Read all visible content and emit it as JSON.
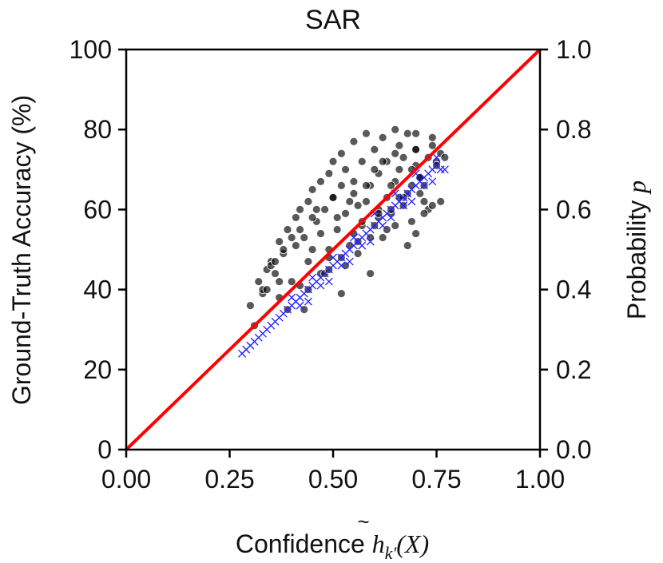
{
  "chart_data": {
    "type": "scatter",
    "title": "SAR",
    "xlabel": {
      "prefix": "Confidence ",
      "symbol": "h",
      "sub": "k′",
      "suffix": "(X)"
    },
    "ylabel": "Ground-Truth Accuracy (%)",
    "y2label": {
      "prefix": "Probability ",
      "symbol": "p"
    },
    "xlim": [
      0,
      1
    ],
    "ylim": [
      0,
      100
    ],
    "y2lim": [
      0,
      1
    ],
    "xticks": [
      "0.00",
      "0.25",
      "0.50",
      "0.75",
      "1.00"
    ],
    "yticks": [
      "0",
      "20",
      "40",
      "60",
      "80",
      "100"
    ],
    "y2ticks": [
      "0.0",
      "0.2",
      "0.4",
      "0.6",
      "0.8",
      "1.0"
    ],
    "grid": false,
    "colors": {
      "accuracy": "#000000",
      "probability": "#1f1fff",
      "reference": "#ff0000"
    },
    "reference_line": {
      "x": [
        0,
        1
      ],
      "y": [
        0,
        100
      ]
    },
    "series": [
      {
        "marker": "circle",
        "axis": "left",
        "x": [
          0.3,
          0.31,
          0.32,
          0.33,
          0.34,
          0.35,
          0.36,
          0.37,
          0.37,
          0.38,
          0.39,
          0.39,
          0.4,
          0.41,
          0.42,
          0.42,
          0.43,
          0.44,
          0.44,
          0.45,
          0.45,
          0.46,
          0.47,
          0.47,
          0.48,
          0.49,
          0.49,
          0.5,
          0.5,
          0.51,
          0.52,
          0.52,
          0.53,
          0.53,
          0.54,
          0.55,
          0.55,
          0.56,
          0.57,
          0.57,
          0.58,
          0.59,
          0.59,
          0.6,
          0.61,
          0.61,
          0.62,
          0.63,
          0.63,
          0.64,
          0.65,
          0.65,
          0.66,
          0.67,
          0.67,
          0.68,
          0.69,
          0.7,
          0.7,
          0.71,
          0.72,
          0.73,
          0.74,
          0.75,
          0.76,
          0.35,
          0.4,
          0.45,
          0.5,
          0.55,
          0.6,
          0.65,
          0.7,
          0.44,
          0.48,
          0.52,
          0.56,
          0.6,
          0.64,
          0.68,
          0.72,
          0.38,
          0.42,
          0.46,
          0.54,
          0.58,
          0.62,
          0.66,
          0.7,
          0.74,
          0.33,
          0.36,
          0.41,
          0.47,
          0.51,
          0.53,
          0.57,
          0.61,
          0.63,
          0.67,
          0.69,
          0.71,
          0.73,
          0.75,
          0.77,
          0.34,
          0.37,
          0.43,
          0.49,
          0.52,
          0.56,
          0.59,
          0.62,
          0.65,
          0.68,
          0.7,
          0.72,
          0.74,
          0.76,
          0.49,
          0.55,
          0.61,
          0.66,
          0.71,
          0.58,
          0.64,
          0.69
        ],
        "y": [
          36,
          31,
          42,
          39,
          45,
          47,
          44,
          52,
          38,
          49,
          35,
          55,
          42,
          58,
          60,
          41,
          53,
          47,
          62,
          65,
          50,
          57,
          44,
          67,
          60,
          69,
          48,
          63,
          72,
          55,
          66,
          74,
          59,
          70,
          51,
          64,
          77,
          61,
          72,
          56,
          79,
          66,
          53,
          75,
          69,
          58,
          78,
          63,
          72,
          59,
          80,
          67,
          76,
          61,
          73,
          79,
          66,
          71,
          75,
          68,
          62,
          73,
          78,
          72,
          74,
          46,
          53,
          58,
          63,
          67,
          70,
          74,
          79,
          40,
          44,
          48,
          52,
          56,
          60,
          64,
          66,
          50,
          55,
          60,
          62,
          66,
          72,
          70,
          75,
          76,
          40,
          47,
          51,
          54,
          58,
          46,
          57,
          60,
          55,
          63,
          57,
          64,
          60,
          71,
          73,
          40,
          42,
          35,
          45,
          39,
          49,
          44,
          53,
          56,
          51,
          54,
          59,
          61,
          62,
          50,
          54,
          59,
          63,
          68,
          62,
          66,
          70
        ]
      },
      {
        "marker": "x",
        "axis": "right",
        "x": [
          0.28,
          0.29,
          0.3,
          0.31,
          0.32,
          0.33,
          0.34,
          0.35,
          0.36,
          0.37,
          0.38,
          0.39,
          0.4,
          0.41,
          0.42,
          0.43,
          0.44,
          0.45,
          0.46,
          0.47,
          0.48,
          0.49,
          0.5,
          0.51,
          0.52,
          0.53,
          0.54,
          0.55,
          0.56,
          0.57,
          0.58,
          0.59,
          0.6,
          0.61,
          0.62,
          0.63,
          0.64,
          0.65,
          0.66,
          0.67,
          0.68,
          0.69,
          0.7,
          0.71,
          0.72,
          0.73,
          0.74,
          0.75,
          0.76,
          0.77,
          0.4,
          0.45,
          0.5,
          0.55,
          0.6,
          0.65,
          0.7,
          0.75,
          0.42,
          0.47,
          0.52,
          0.57,
          0.62,
          0.67,
          0.72,
          0.44,
          0.49,
          0.54,
          0.59,
          0.64,
          0.69,
          0.74
        ],
        "y": [
          0.24,
          0.25,
          0.26,
          0.27,
          0.28,
          0.29,
          0.3,
          0.31,
          0.32,
          0.33,
          0.34,
          0.35,
          0.36,
          0.37,
          0.38,
          0.39,
          0.4,
          0.41,
          0.42,
          0.43,
          0.44,
          0.45,
          0.46,
          0.47,
          0.48,
          0.49,
          0.5,
          0.51,
          0.52,
          0.53,
          0.54,
          0.55,
          0.56,
          0.57,
          0.58,
          0.59,
          0.6,
          0.61,
          0.62,
          0.63,
          0.64,
          0.65,
          0.66,
          0.67,
          0.68,
          0.69,
          0.7,
          0.71,
          0.7,
          0.7,
          0.38,
          0.43,
          0.48,
          0.53,
          0.59,
          0.64,
          0.69,
          0.73,
          0.36,
          0.41,
          0.46,
          0.51,
          0.56,
          0.61,
          0.66,
          0.37,
          0.42,
          0.47,
          0.52,
          0.58,
          0.62,
          0.67
        ]
      }
    ]
  }
}
